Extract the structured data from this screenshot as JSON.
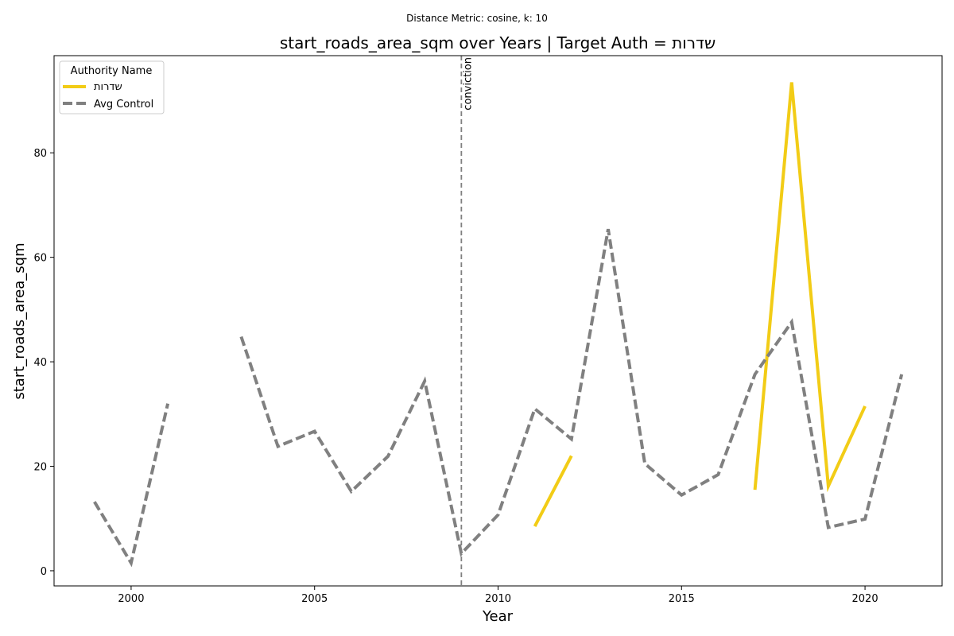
{
  "chart_data": {
    "type": "line",
    "suptitle": "Distance Metric: cosine, k: 10",
    "title": "start_roads_area_sqm over Years | Target Auth = שדרות",
    "xlabel": "Year",
    "ylabel": "start_roads_area_sqm",
    "xlim": [
      1997.9,
      2022.1
    ],
    "ylim": [
      -2.9,
      98.6
    ],
    "xticks": [
      2000,
      2005,
      2010,
      2015,
      2020
    ],
    "yticks": [
      0,
      20,
      40,
      60,
      80
    ],
    "grid": false,
    "legend": {
      "title": "Authority Name",
      "placement": "top-left"
    },
    "series": [
      {
        "name": "שדרות",
        "color": "#f2cc16",
        "style": "solid",
        "points": [
          [
            2011,
            8.5
          ],
          [
            2012,
            22.0
          ],
          [
            2013,
            null
          ],
          [
            2014,
            null
          ],
          [
            2015,
            null
          ],
          [
            2016,
            null
          ],
          [
            2017,
            15.5
          ],
          [
            2018,
            93.5
          ],
          [
            2019,
            16.2
          ],
          [
            2020,
            31.5
          ]
        ]
      },
      {
        "name": "Avg Control",
        "color": "#808080",
        "style": "dashed",
        "points": [
          [
            1999,
            13.2
          ],
          [
            2000,
            1.5
          ],
          [
            2001,
            32.0
          ],
          [
            2002,
            null
          ],
          [
            2003,
            44.8
          ],
          [
            2004,
            23.8
          ],
          [
            2005,
            26.7
          ],
          [
            2006,
            15.2
          ],
          [
            2007,
            21.9
          ],
          [
            2008,
            36.3
          ],
          [
            2009,
            3.3
          ],
          [
            2010,
            10.7
          ],
          [
            2011,
            31.0
          ],
          [
            2012,
            25.2
          ],
          [
            2013,
            65.4
          ],
          [
            2014,
            20.5
          ],
          [
            2015,
            14.5
          ],
          [
            2016,
            18.4
          ],
          [
            2017,
            37.6
          ],
          [
            2018,
            47.6
          ],
          [
            2019,
            8.3
          ],
          [
            2020,
            9.9
          ],
          [
            2021,
            37.6
          ]
        ]
      }
    ],
    "annotations": [
      {
        "type": "vline",
        "x": 2009,
        "color": "#808080",
        "style": "dashed",
        "label": "conviction"
      }
    ]
  }
}
